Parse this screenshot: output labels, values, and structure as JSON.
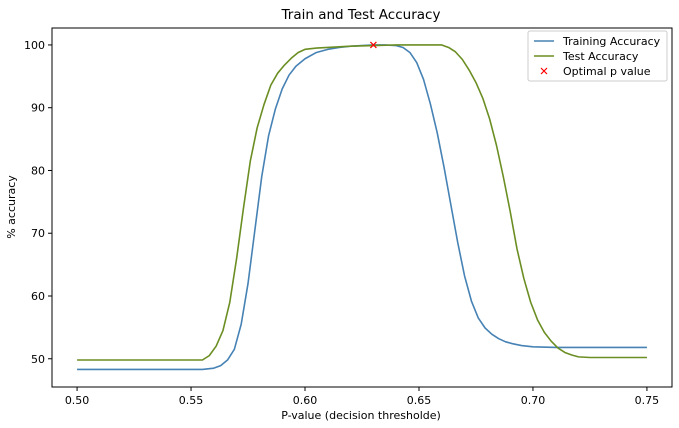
{
  "chart_data": {
    "type": "line",
    "title": "Train and Test Accuracy",
    "xlabel": "P-value (decision thresholde)",
    "ylabel": "% accuracy",
    "xlim": [
      0.489,
      0.761
    ],
    "ylim": [
      45.5,
      102.7
    ],
    "xticks": [
      0.5,
      0.55,
      0.6,
      0.65,
      0.7,
      0.75
    ],
    "xtick_labels": [
      "0.50",
      "0.55",
      "0.60",
      "0.65",
      "0.70",
      "0.75"
    ],
    "yticks": [
      50,
      60,
      70,
      80,
      90,
      100
    ],
    "ytick_labels": [
      "50",
      "60",
      "70",
      "80",
      "90",
      "100"
    ],
    "grid": false,
    "legend_position": "top-right",
    "series": [
      {
        "name": "Training Accuracy",
        "color": "#4682b4",
        "style": "line",
        "x": [
          0.5,
          0.55,
          0.555,
          0.56,
          0.563,
          0.566,
          0.569,
          0.572,
          0.575,
          0.578,
          0.581,
          0.584,
          0.587,
          0.59,
          0.593,
          0.596,
          0.6,
          0.605,
          0.61,
          0.615,
          0.62,
          0.625,
          0.63,
          0.635,
          0.64,
          0.643,
          0.646,
          0.649,
          0.652,
          0.655,
          0.658,
          0.661,
          0.664,
          0.667,
          0.67,
          0.673,
          0.676,
          0.679,
          0.682,
          0.685,
          0.688,
          0.691,
          0.695,
          0.7,
          0.71,
          0.72,
          0.75
        ],
        "y": [
          48.3,
          48.3,
          48.3,
          48.5,
          48.9,
          49.8,
          51.5,
          55.5,
          62.0,
          70.5,
          79.0,
          85.5,
          89.8,
          93.0,
          95.2,
          96.6,
          97.8,
          98.8,
          99.3,
          99.6,
          99.8,
          99.9,
          100.0,
          100.0,
          99.9,
          99.6,
          98.8,
          97.2,
          94.5,
          90.6,
          86.0,
          80.5,
          74.5,
          68.5,
          63.2,
          59.2,
          56.5,
          54.9,
          53.9,
          53.2,
          52.7,
          52.4,
          52.1,
          51.9,
          51.8,
          51.8,
          51.8
        ]
      },
      {
        "name": "Test Accuracy",
        "color": "#6b8e23",
        "style": "line",
        "x": [
          0.5,
          0.555,
          0.558,
          0.561,
          0.564,
          0.567,
          0.57,
          0.573,
          0.576,
          0.579,
          0.582,
          0.585,
          0.588,
          0.591,
          0.594,
          0.597,
          0.6,
          0.605,
          0.61,
          0.62,
          0.63,
          0.64,
          0.65,
          0.66,
          0.663,
          0.666,
          0.669,
          0.672,
          0.675,
          0.678,
          0.681,
          0.684,
          0.687,
          0.69,
          0.693,
          0.696,
          0.699,
          0.702,
          0.705,
          0.708,
          0.711,
          0.714,
          0.717,
          0.72,
          0.725,
          0.75
        ],
        "y": [
          49.8,
          49.8,
          50.5,
          52.0,
          54.5,
          59.0,
          66.0,
          74.0,
          81.5,
          86.8,
          90.5,
          93.6,
          95.5,
          96.8,
          97.9,
          98.8,
          99.3,
          99.5,
          99.6,
          99.8,
          99.9,
          100.0,
          100.0,
          100.0,
          99.6,
          98.9,
          97.7,
          96.0,
          94.0,
          91.5,
          88.2,
          84.0,
          79.0,
          73.5,
          67.5,
          62.8,
          59.0,
          56.2,
          54.2,
          52.8,
          51.7,
          51.0,
          50.6,
          50.3,
          50.2,
          50.2
        ]
      },
      {
        "name": "Optimal p value",
        "color": "#ff0000",
        "style": "marker-x",
        "x": [
          0.63
        ],
        "y": [
          100.0
        ]
      }
    ]
  }
}
